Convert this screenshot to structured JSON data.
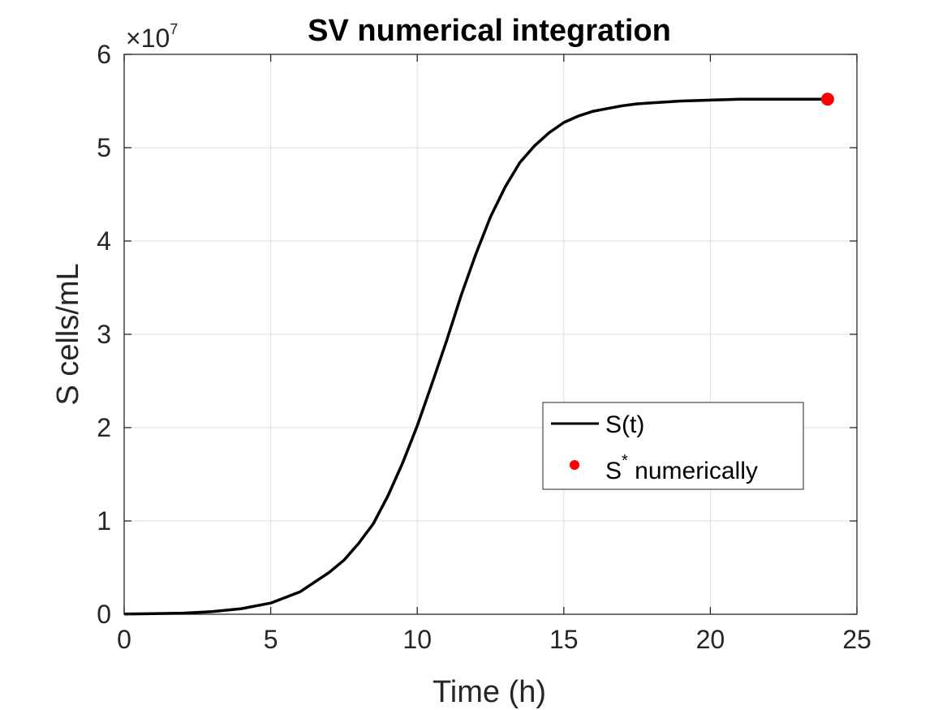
{
  "chart_data": {
    "type": "line",
    "title": "SV numerical integration",
    "xlabel": "Time (h)",
    "ylabel": "S cells/mL",
    "y_exponent_label": {
      "base": "×10",
      "exp": "7"
    },
    "xlim": [
      0,
      25
    ],
    "ylim": [
      0,
      6
    ],
    "y_scale_factor": 10000000,
    "xticks": [
      0,
      5,
      10,
      15,
      20,
      25
    ],
    "yticks": [
      0,
      1,
      2,
      3,
      4,
      5,
      6
    ],
    "xtick_labels": [
      "0",
      "5",
      "10",
      "15",
      "20",
      "25"
    ],
    "ytick_labels": [
      "0",
      "1",
      "2",
      "3",
      "4",
      "5",
      "6"
    ],
    "grid": true,
    "legend_position": "center-right",
    "series": [
      {
        "name": "S(t)",
        "kind": "line",
        "color": "#000000",
        "x": [
          0,
          1,
          2,
          3,
          4,
          5,
          6,
          7,
          7.5,
          8,
          8.5,
          9,
          9.5,
          10,
          10.5,
          11,
          11.5,
          12,
          12.5,
          13,
          13.5,
          14,
          14.5,
          15,
          15.5,
          16,
          16.5,
          17,
          17.5,
          18,
          19,
          20,
          21,
          22,
          23,
          24
        ],
        "y": [
          0.003,
          0.006,
          0.012,
          0.028,
          0.06,
          0.12,
          0.24,
          0.45,
          0.58,
          0.76,
          0.97,
          1.27,
          1.62,
          2.02,
          2.47,
          2.93,
          3.42,
          3.86,
          4.26,
          4.58,
          4.84,
          5.02,
          5.16,
          5.27,
          5.34,
          5.39,
          5.42,
          5.45,
          5.47,
          5.48,
          5.5,
          5.51,
          5.52,
          5.52,
          5.52,
          5.52
        ]
      },
      {
        "name": "S numerically",
        "legend_label": {
          "base": "S",
          "sup": "*",
          "rest": " numerically"
        },
        "kind": "scatter",
        "color": "#ff0000",
        "x": [
          24
        ],
        "y": [
          5.52
        ]
      }
    ]
  }
}
